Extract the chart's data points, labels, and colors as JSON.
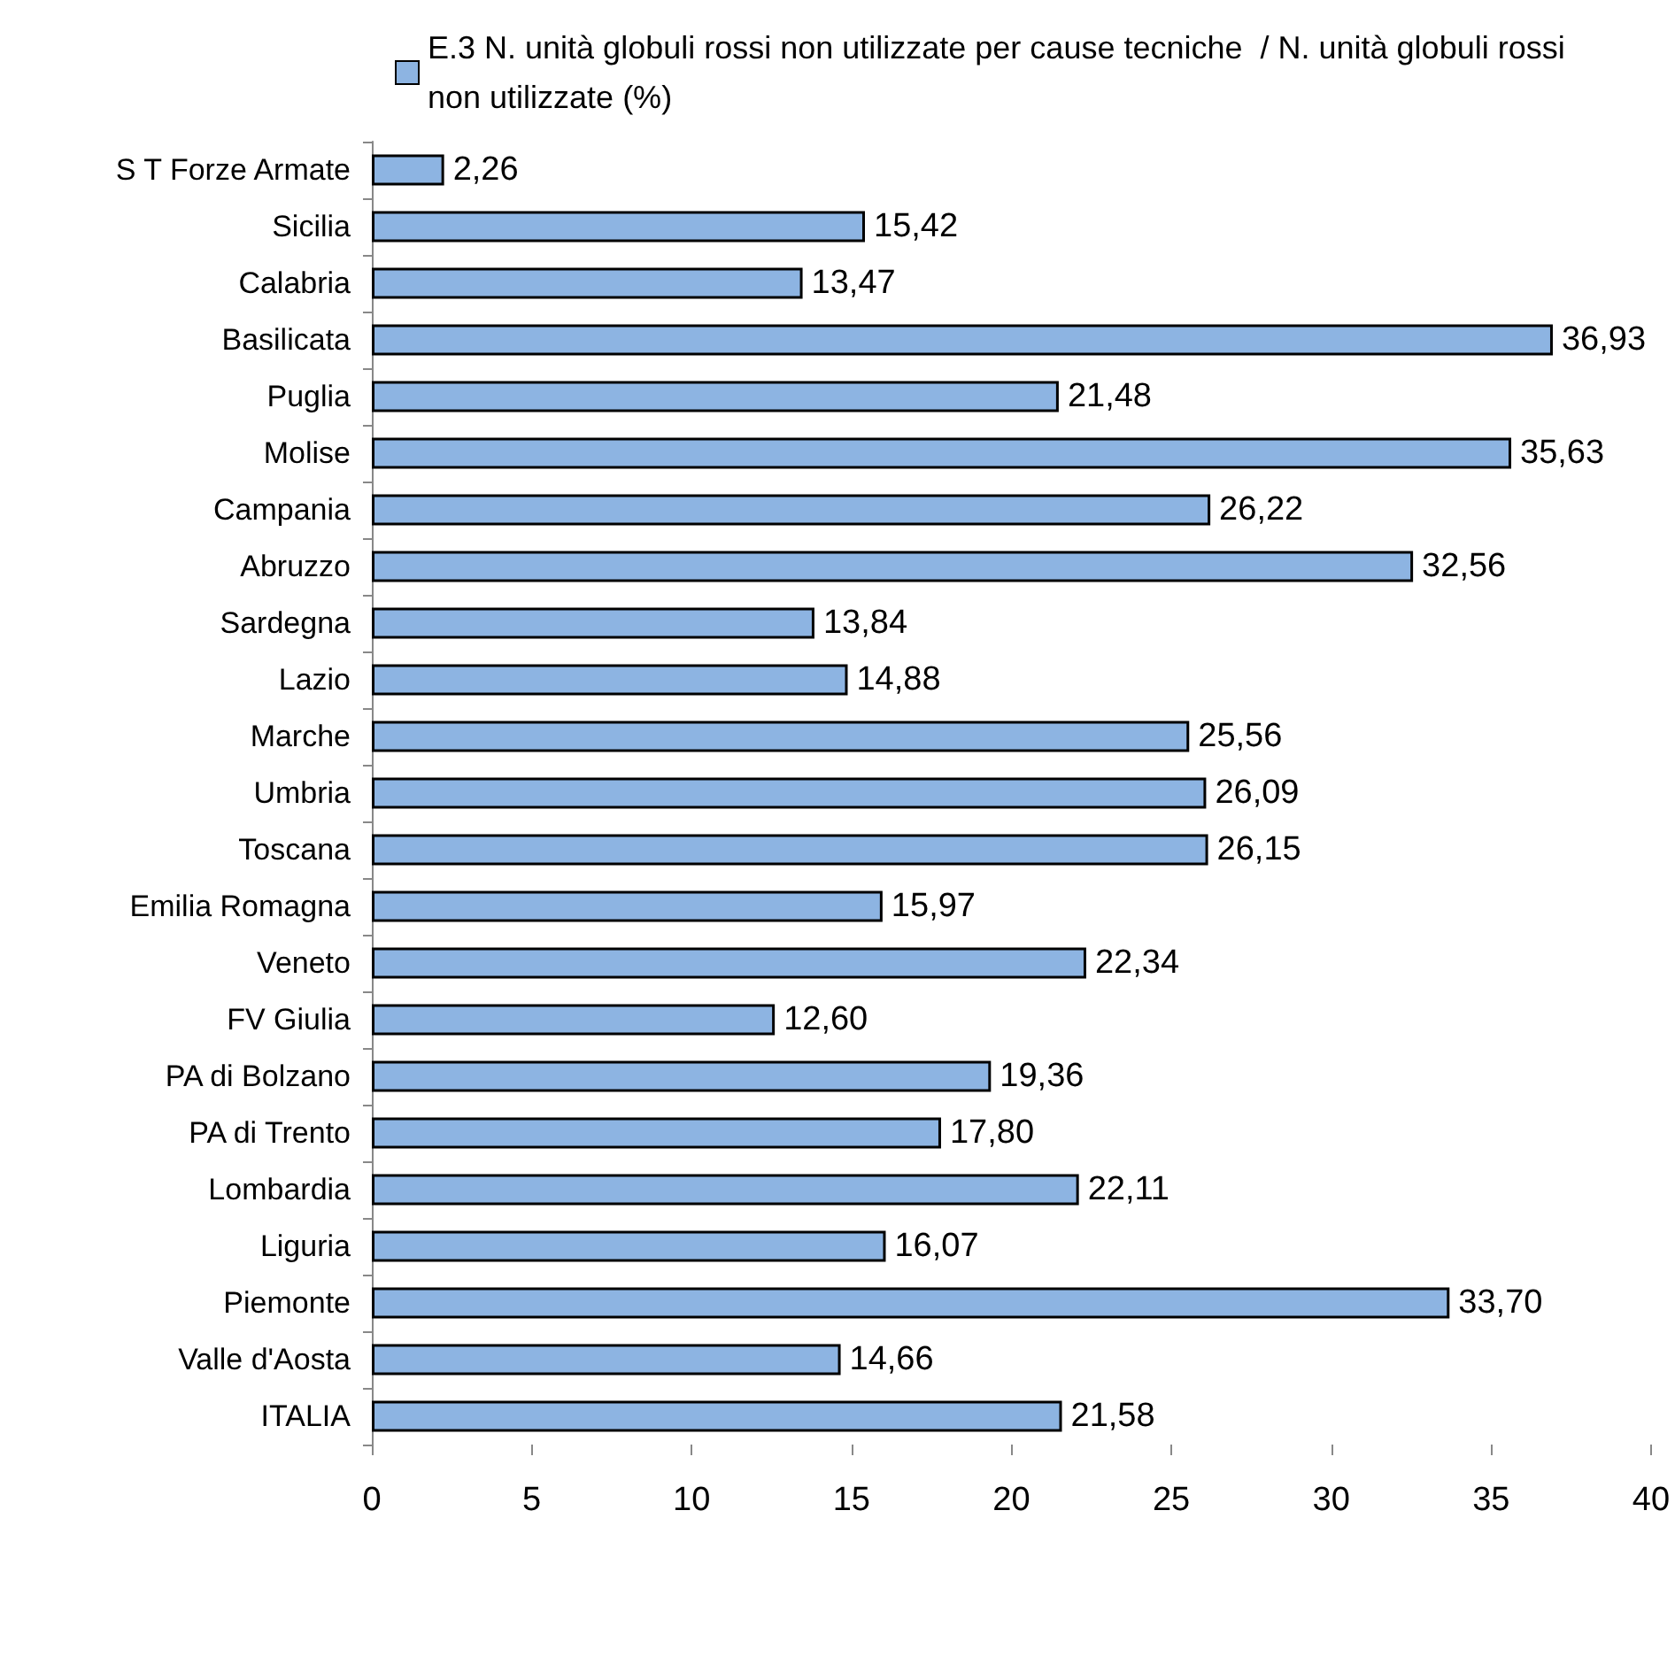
{
  "chart_data": {
    "type": "bar",
    "orientation": "horizontal",
    "categories": [
      "S T Forze Armate",
      "Sicilia",
      "Calabria",
      "Basilicata",
      "Puglia",
      "Molise",
      "Campania",
      "Abruzzo",
      "Sardegna",
      "Lazio",
      "Marche",
      "Umbria",
      "Toscana",
      "Emilia Romagna",
      "Veneto",
      "FV Giulia",
      "PA di Bolzano",
      "PA di Trento",
      "Lombardia",
      "Liguria",
      "Piemonte",
      "Valle d'Aosta",
      "ITALIA"
    ],
    "series": [
      {
        "name": "E.3 N. unità globuli rossi non utilizzate per cause tecniche  / N. unità globuli rossi non utilizzate (%)",
        "color": "#8db4e2",
        "values": [
          2.26,
          15.42,
          13.47,
          36.93,
          21.48,
          35.63,
          26.22,
          32.56,
          13.84,
          14.88,
          25.56,
          26.09,
          26.15,
          15.97,
          22.34,
          12.6,
          19.36,
          17.8,
          22.11,
          16.07,
          33.7,
          14.66,
          21.58
        ],
        "value_labels": [
          "2,26",
          "15,42",
          "13,47",
          "36,93",
          "21,48",
          "35,63",
          "26,22",
          "32,56",
          "13,84",
          "14,88",
          "25,56",
          "26,09",
          "26,15",
          "15,97",
          "22,34",
          "12,60",
          "19,36",
          "17,80",
          "22,11",
          "16,07",
          "33,70",
          "14,66",
          "21,58"
        ]
      }
    ],
    "xlim": [
      0,
      40
    ],
    "xticks": [
      0,
      5,
      10,
      15,
      20,
      25,
      30,
      35,
      40
    ],
    "grid": false,
    "legend": "top"
  }
}
